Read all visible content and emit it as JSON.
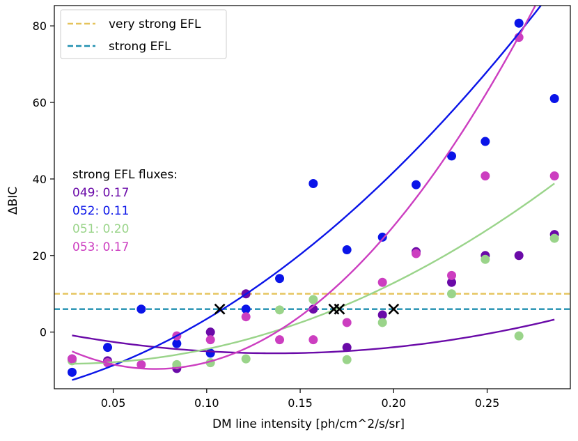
{
  "chart_data": {
    "type": "scatter",
    "title": "",
    "xlabel": "DM line intensity [ph/cm^2/s/sr]",
    "ylabel": "ΔBIC",
    "xlim": [
      0.0185,
      0.2945
    ],
    "ylim": [
      -14.8,
      85.3
    ],
    "xticks": [
      0.05,
      0.1,
      0.15,
      0.2,
      0.25
    ],
    "xtick_labels": [
      "0.05",
      "0.10",
      "0.15",
      "0.20",
      "0.25"
    ],
    "yticks": [
      0,
      20,
      40,
      60,
      80
    ],
    "ytick_labels": [
      "0",
      "20",
      "40",
      "60",
      "80"
    ],
    "grid": false,
    "thresholds": [
      {
        "name": "very strong EFL",
        "y": 10,
        "color": "#e5c35b"
      },
      {
        "name": "strong EFL",
        "y": 6,
        "color": "#1f8fb0"
      }
    ],
    "legend": {
      "placement": "top-left"
    },
    "annotation_title": "strong EFL fluxes:",
    "series": [
      {
        "name": "049",
        "flux_label": "049: 0.17",
        "color": "#6a0aa8",
        "x": [
          0.028,
          0.047,
          0.084,
          0.102,
          0.121,
          0.157,
          0.175,
          0.194,
          0.212,
          0.231,
          0.249,
          0.267,
          0.286
        ],
        "y": [
          -7.0,
          -7.5,
          -9.5,
          0.0,
          10.0,
          6.0,
          -4.0,
          4.5,
          21.0,
          13.0,
          20.0,
          20.0,
          25.5
        ],
        "fit": {
          "x_start": 0.028,
          "x_end": 0.286,
          "coeffs": [
            1.85,
            -108.0,
            395.0
          ]
        },
        "crossing_x": 0.168
      },
      {
        "name": "052",
        "flux_label": "052: 0.11",
        "color": "#0a14e8",
        "x": [
          0.028,
          0.047,
          0.065,
          0.084,
          0.102,
          0.121,
          0.139,
          0.157,
          0.175,
          0.194,
          0.212,
          0.231,
          0.249,
          0.267,
          0.286
        ],
        "y": [
          -10.5,
          -4.0,
          6.0,
          -3.0,
          -5.5,
          6.0,
          14.0,
          38.8,
          21.5,
          24.8,
          38.5,
          46.0,
          49.8,
          80.7,
          61.0
        ],
        "fit": {
          "x_start": 0.028,
          "x_end": 0.286,
          "coeffs": [
            -16.1,
            101.0,
            943.0
          ]
        },
        "crossing_x": 0.107
      },
      {
        "name": "051",
        "flux_label": "051: 0.20",
        "color": "#9ad48a",
        "x": [
          0.028,
          0.047,
          0.084,
          0.102,
          0.121,
          0.139,
          0.157,
          0.175,
          0.194,
          0.231,
          0.249,
          0.267,
          0.286
        ],
        "y": [
          -7.5,
          -8.0,
          -8.5,
          -8.0,
          -7.0,
          5.8,
          8.5,
          -7.2,
          2.5,
          10.0,
          19.0,
          -1.0,
          24.5
        ],
        "fit": {
          "x_start": 0.028,
          "x_end": 0.286,
          "coeffs": [
            -7.8,
            -36.0,
            696.0
          ]
        },
        "crossing_x": 0.2
      },
      {
        "name": "053",
        "flux_label": "053: 0.17",
        "color": "#cc3ec0",
        "x": [
          0.028,
          0.047,
          0.065,
          0.084,
          0.102,
          0.121,
          0.139,
          0.157,
          0.175,
          0.194,
          0.212,
          0.231,
          0.249,
          0.267,
          0.286
        ],
        "y": [
          -7.0,
          -8.0,
          -8.5,
          -1.0,
          -2.0,
          4.0,
          -2.0,
          -2.0,
          2.5,
          13.0,
          20.5,
          14.8,
          40.8,
          77.0,
          40.8
        ],
        "fit": {
          "x_start": 0.028,
          "x_end": 0.286,
          "coeffs": [
            2.5,
            -334.0,
            2300.0
          ]
        },
        "crossing_x": 0.171
      }
    ]
  }
}
